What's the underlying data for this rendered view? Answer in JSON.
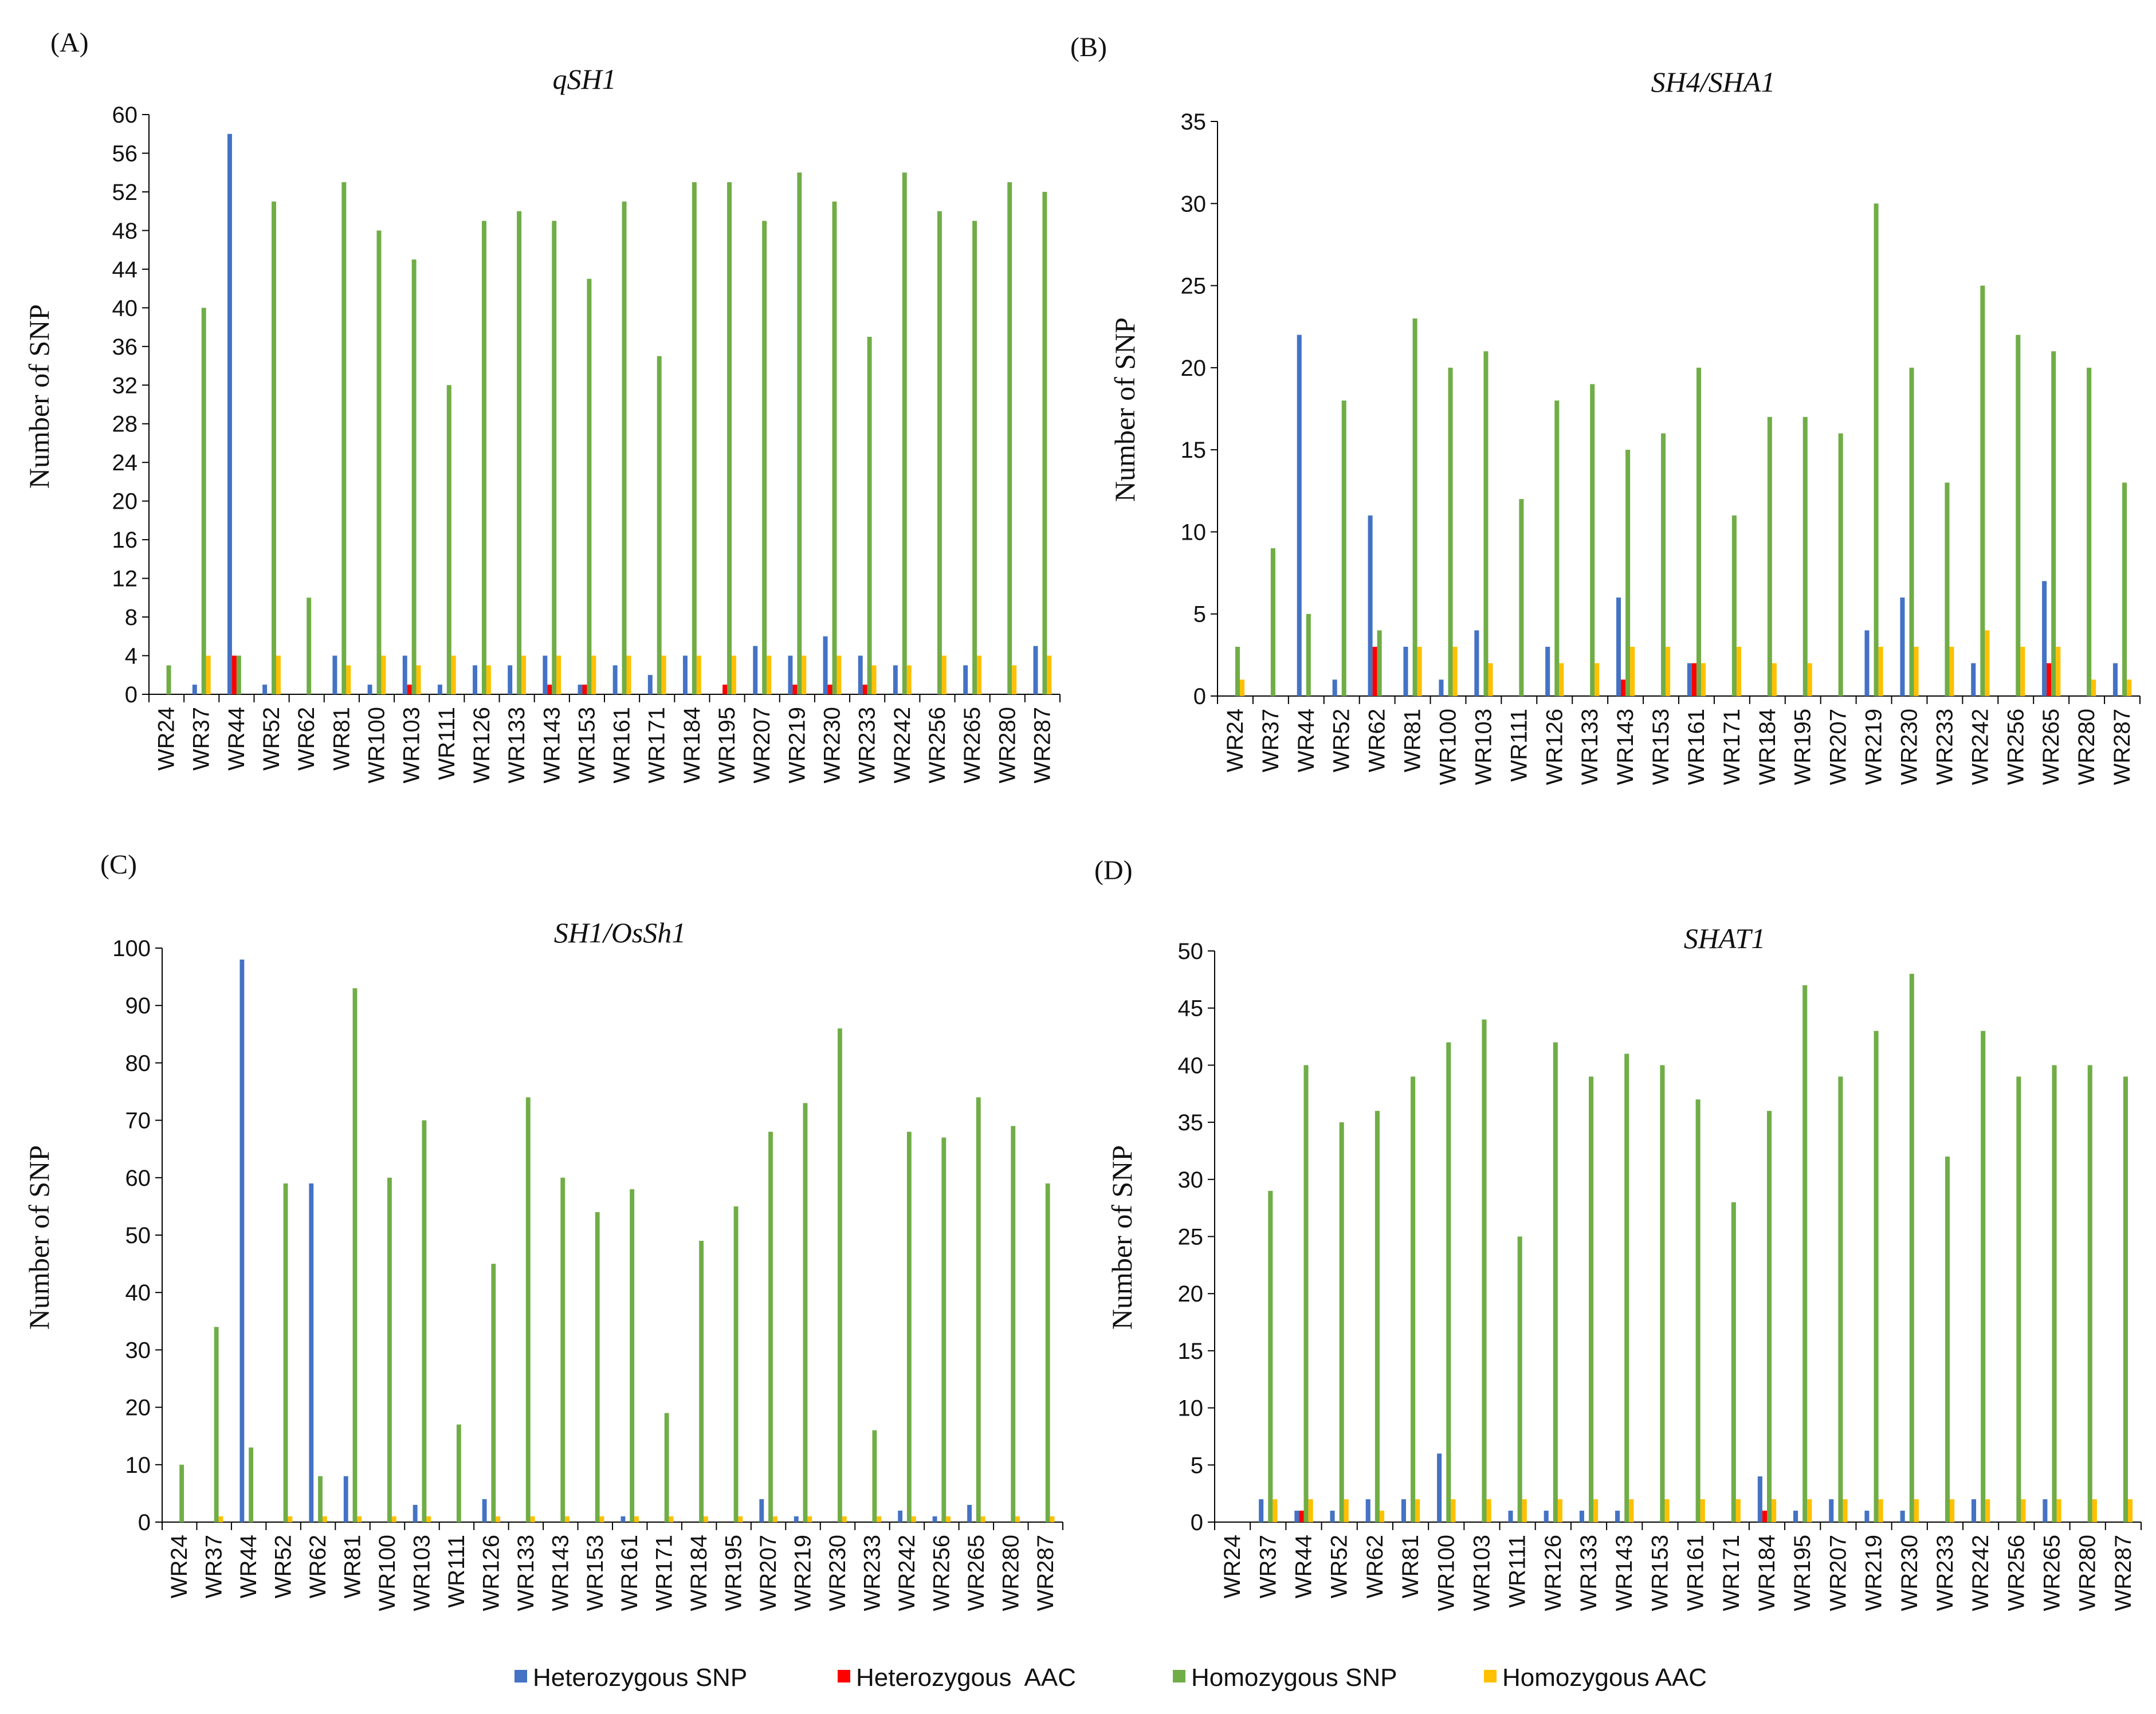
{
  "legend": [
    {
      "name": "Heterozygous SNP",
      "color": "#4472C4"
    },
    {
      "name": "Heterozygous  AAC",
      "color": "#FF0000"
    },
    {
      "name": "Homozygous SNP",
      "color": "#70AD47"
    },
    {
      "name": "Homozygous AAC",
      "color": "#FFC000"
    }
  ],
  "chart_data": [
    {
      "panel": "(A)",
      "type": "bar",
      "title": "qSH1",
      "ylabel": "Number of SNP",
      "xlabel": "",
      "ylim": [
        0,
        60
      ],
      "yticks": [
        0,
        4,
        8,
        12,
        16,
        20,
        24,
        28,
        32,
        36,
        40,
        44,
        48,
        52,
        56,
        60
      ],
      "categories": [
        "WR24",
        "WR37",
        "WR44",
        "WR52",
        "WR62",
        "WR81",
        "WR100",
        "WR103",
        "WR111",
        "WR126",
        "WR133",
        "WR143",
        "WR153",
        "WR161",
        "WR171",
        "WR184",
        "WR195",
        "WR207",
        "WR219",
        "WR230",
        "WR233",
        "WR242",
        "WR256",
        "WR265",
        "WR280",
        "WR287"
      ],
      "series": [
        {
          "name": "Heterozygous SNP",
          "values": [
            0,
            1,
            58,
            1,
            0,
            4,
            1,
            4,
            1,
            3,
            3,
            4,
            1,
            3,
            2,
            4,
            0,
            5,
            4,
            6,
            4,
            3,
            0,
            3,
            0,
            5
          ]
        },
        {
          "name": "Heterozygous  AAC",
          "values": [
            0,
            0,
            4,
            0,
            0,
            0,
            0,
            1,
            0,
            0,
            0,
            1,
            1,
            0,
            0,
            0,
            1,
            0,
            1,
            1,
            1,
            0,
            0,
            0,
            0,
            0
          ]
        },
        {
          "name": "Homozygous SNP",
          "values": [
            3,
            40,
            4,
            51,
            10,
            53,
            48,
            45,
            32,
            49,
            50,
            49,
            43,
            51,
            35,
            53,
            53,
            49,
            54,
            51,
            37,
            54,
            50,
            49,
            53,
            52
          ]
        },
        {
          "name": "Homozygous AAC",
          "values": [
            0,
            4,
            0,
            4,
            0,
            3,
            4,
            3,
            4,
            3,
            4,
            4,
            4,
            4,
            4,
            4,
            4,
            4,
            4,
            4,
            3,
            3,
            4,
            4,
            3,
            4
          ]
        }
      ]
    },
    {
      "panel": "(B)",
      "type": "bar",
      "title": "SH4/SHA1",
      "ylabel": "Number of SNP",
      "xlabel": "",
      "ylim": [
        0,
        35
      ],
      "yticks": [
        0,
        5,
        10,
        15,
        20,
        25,
        30,
        35
      ],
      "categories": [
        "WR24",
        "WR37",
        "WR44",
        "WR52",
        "WR62",
        "WR81",
        "WR100",
        "WR103",
        "WR111",
        "WR126",
        "WR133",
        "WR143",
        "WR153",
        "WR161",
        "WR171",
        "WR184",
        "WR195",
        "WR207",
        "WR219",
        "WR230",
        "WR233",
        "WR242",
        "WR256",
        "WR265",
        "WR280",
        "WR287"
      ],
      "series": [
        {
          "name": "Heterozygous SNP",
          "values": [
            0,
            0,
            22,
            1,
            11,
            3,
            1,
            4,
            0,
            3,
            0,
            6,
            0,
            2,
            0,
            0,
            0,
            0,
            4,
            6,
            0,
            2,
            0,
            7,
            0,
            2
          ]
        },
        {
          "name": "Heterozygous  AAC",
          "values": [
            0,
            0,
            0,
            0,
            3,
            0,
            0,
            0,
            0,
            0,
            0,
            1,
            0,
            2,
            0,
            0,
            0,
            0,
            0,
            0,
            0,
            0,
            0,
            2,
            0,
            0
          ]
        },
        {
          "name": "Homozygous SNP",
          "values": [
            3,
            9,
            5,
            18,
            4,
            23,
            20,
            21,
            12,
            18,
            19,
            15,
            16,
            20,
            11,
            17,
            17,
            16,
            30,
            20,
            13,
            25,
            22,
            21,
            20,
            13
          ]
        },
        {
          "name": "Homozygous AAC",
          "values": [
            1,
            0,
            0,
            0,
            0,
            3,
            3,
            2,
            0,
            2,
            2,
            3,
            3,
            2,
            3,
            2,
            2,
            0,
            3,
            3,
            3,
            4,
            3,
            3,
            1,
            1
          ]
        }
      ]
    },
    {
      "panel": "(C)",
      "type": "bar",
      "title": "SH1/OsSh1",
      "ylabel": "Number of SNP",
      "xlabel": "",
      "ylim": [
        0,
        100
      ],
      "yticks": [
        0,
        10,
        20,
        30,
        40,
        50,
        60,
        70,
        80,
        90,
        100
      ],
      "categories": [
        "WR24",
        "WR37",
        "WR44",
        "WR52",
        "WR62",
        "WR81",
        "WR100",
        "WR103",
        "WR111",
        "WR126",
        "WR133",
        "WR143",
        "WR153",
        "WR161",
        "WR171",
        "WR184",
        "WR195",
        "WR207",
        "WR219",
        "WR230",
        "WR233",
        "WR242",
        "WR256",
        "WR265",
        "WR280",
        "WR287"
      ],
      "series": [
        {
          "name": "Heterozygous SNP",
          "values": [
            0,
            0,
            98,
            0,
            59,
            8,
            0,
            3,
            0,
            4,
            0,
            0,
            0,
            1,
            0,
            0,
            0,
            4,
            1,
            0,
            0,
            2,
            1,
            3,
            0,
            0
          ]
        },
        {
          "name": "Heterozygous  AAC",
          "values": [
            0,
            0,
            0,
            0,
            0,
            0,
            0,
            0,
            0,
            0,
            0,
            0,
            0,
            0,
            0,
            0,
            0,
            0,
            0,
            0,
            0,
            0,
            0,
            0,
            0,
            0
          ]
        },
        {
          "name": "Homozygous SNP",
          "values": [
            10,
            34,
            13,
            59,
            8,
            93,
            60,
            70,
            17,
            45,
            74,
            60,
            54,
            58,
            19,
            49,
            55,
            68,
            73,
            86,
            16,
            68,
            67,
            74,
            69,
            59
          ]
        },
        {
          "name": "Homozygous AAC",
          "values": [
            0,
            1,
            0,
            1,
            1,
            1,
            1,
            1,
            0,
            1,
            1,
            1,
            1,
            1,
            1,
            1,
            1,
            1,
            1,
            1,
            1,
            1,
            1,
            1,
            1,
            1
          ]
        }
      ]
    },
    {
      "panel": "(D)",
      "type": "bar",
      "title": "SHAT1",
      "ylabel": "Number of SNP",
      "xlabel": "",
      "ylim": [
        0,
        50
      ],
      "yticks": [
        0,
        5,
        10,
        15,
        20,
        25,
        30,
        35,
        40,
        45,
        50
      ],
      "categories": [
        "WR24",
        "WR37",
        "WR44",
        "WR52",
        "WR62",
        "WR81",
        "WR100",
        "WR103",
        "WR111",
        "WR126",
        "WR133",
        "WR143",
        "WR153",
        "WR161",
        "WR171",
        "WR184",
        "WR195",
        "WR207",
        "WR219",
        "WR230",
        "WR233",
        "WR242",
        "WR256",
        "WR265",
        "WR280",
        "WR287"
      ],
      "series": [
        {
          "name": "Heterozygous SNP",
          "values": [
            0,
            2,
            1,
            1,
            2,
            2,
            6,
            0,
            1,
            1,
            1,
            1,
            0,
            0,
            0,
            4,
            1,
            2,
            1,
            1,
            0,
            2,
            0,
            2,
            0,
            0
          ]
        },
        {
          "name": "Heterozygous  AAC",
          "values": [
            0,
            0,
            1,
            0,
            0,
            0,
            0,
            0,
            0,
            0,
            0,
            0,
            0,
            0,
            0,
            1,
            0,
            0,
            0,
            0,
            0,
            0,
            0,
            0,
            0,
            0
          ]
        },
        {
          "name": "Homozygous SNP",
          "values": [
            0,
            29,
            40,
            35,
            36,
            39,
            42,
            44,
            25,
            42,
            39,
            41,
            40,
            37,
            28,
            36,
            47,
            39,
            43,
            48,
            32,
            43,
            39,
            40,
            40,
            39
          ]
        },
        {
          "name": "Homozygous AAC",
          "values": [
            0,
            2,
            2,
            2,
            1,
            2,
            2,
            2,
            2,
            2,
            2,
            2,
            2,
            2,
            2,
            2,
            2,
            2,
            2,
            2,
            2,
            2,
            2,
            2,
            2,
            2
          ]
        }
      ]
    }
  ]
}
